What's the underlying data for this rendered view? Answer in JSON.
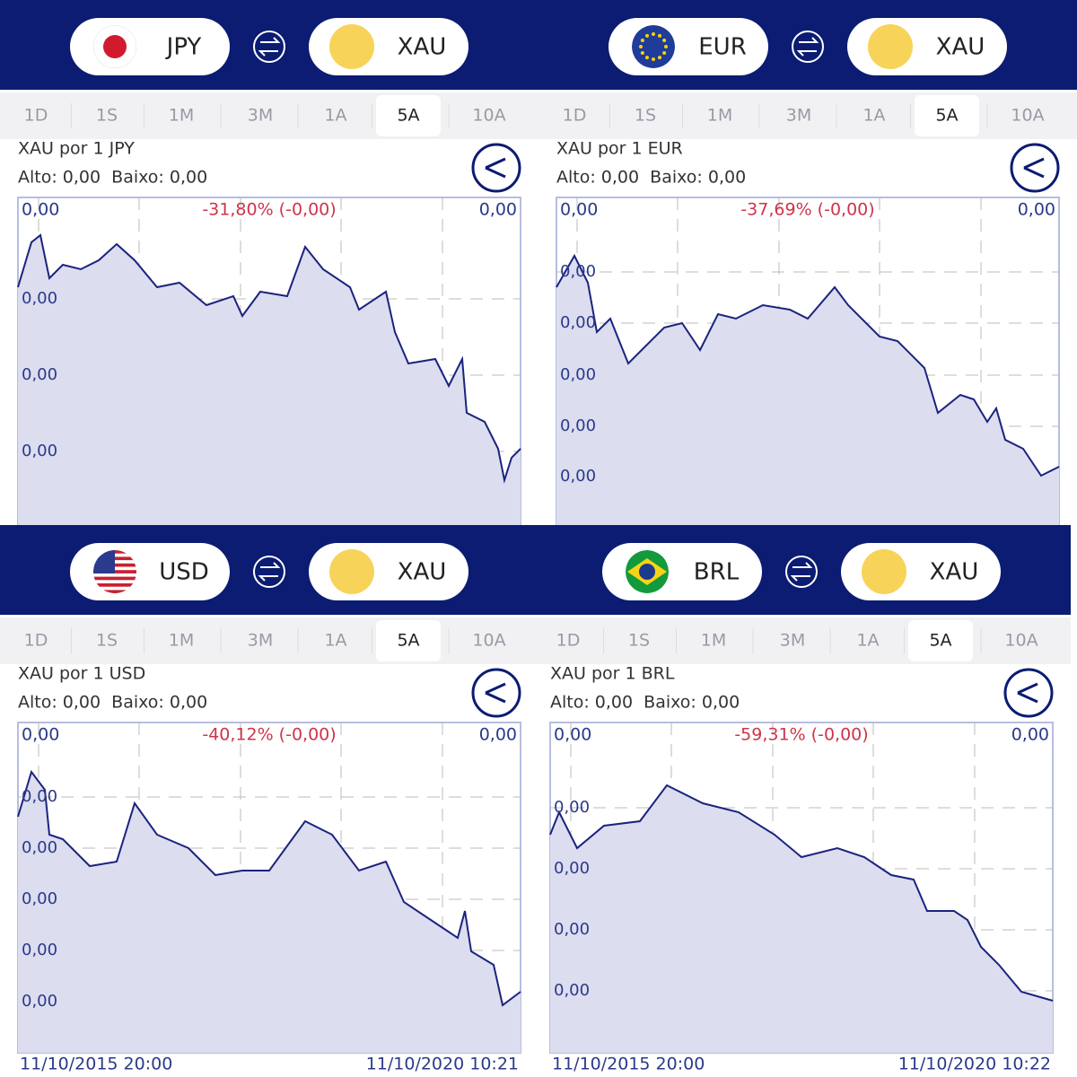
{
  "tabs": [
    "1D",
    "1S",
    "1M",
    "3M",
    "1A",
    "5A",
    "10A"
  ],
  "selected_tab": "5A",
  "panels": [
    {
      "base": "JPY",
      "quote": "XAU",
      "pair_title": "XAU por 1 JPY",
      "high_low": "Alto: 0,00  Baixo: 0,00",
      "open_label": "0,00",
      "change": "-31,80% (-0,00)",
      "close_label": "0,00",
      "axis_labels": [
        "0,00",
        "0,00",
        "0,00"
      ]
    },
    {
      "base": "EUR",
      "quote": "XAU",
      "pair_title": "XAU por 1 EUR",
      "high_low": "Alto: 0,00  Baixo: 0,00",
      "open_label": "0,00",
      "change": "-37,69% (-0,00)",
      "close_label": "0,00",
      "axis_labels": [
        "0,00",
        "0,00",
        "0,00",
        "0,00",
        "0,00"
      ]
    },
    {
      "base": "USD",
      "quote": "XAU",
      "pair_title": "XAU por 1 USD",
      "high_low": "Alto: 0,00  Baixo: 0,00",
      "open_label": "0,00",
      "change": "-40,12% (-0,00)",
      "close_label": "0,00",
      "axis_labels": [
        "0,00",
        "0,00",
        "0,00",
        "0,00",
        "0,00"
      ],
      "dates": [
        "11/10/2015 20:00",
        "11/10/2020 10:21"
      ]
    },
    {
      "base": "BRL",
      "quote": "XAU",
      "pair_title": "XAU por 1 BRL",
      "high_low": "Alto: 0,00  Baixo: 0,00",
      "open_label": "0,00",
      "change": "-59,31% (-0,00)",
      "close_label": "0,00",
      "axis_labels": [
        "0,00",
        "0,00",
        "0,00",
        "0,00"
      ],
      "dates": [
        "11/10/2015 20:00",
        "11/10/2020 10:22"
      ]
    }
  ]
}
